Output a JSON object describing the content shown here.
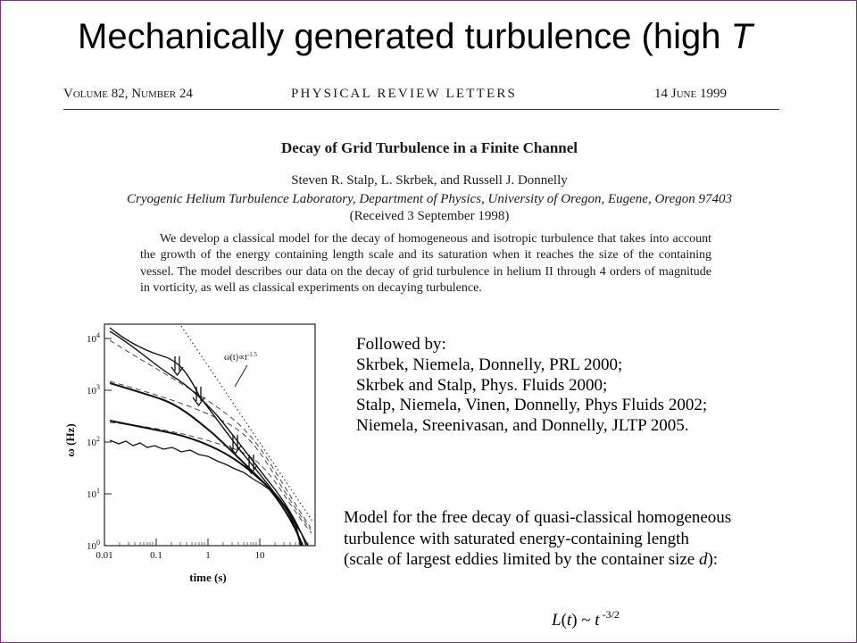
{
  "slide": {
    "title_pre": "Mechanically generated turbulence (high ",
    "title_var": "T",
    "border_color": "#7b2f7f"
  },
  "paper": {
    "header_left": "Volume 82, Number 24",
    "journal": "PHYSICAL REVIEW LETTERS",
    "date": "14 June 1999",
    "title": "Decay of Grid Turbulence in a Finite Channel",
    "authors": "Steven R. Stalp, L. Skrbek, and Russell J. Donnelly",
    "affiliation": "Cryogenic Helium Turbulence Laboratory, Department of Physics, University of Oregon, Eugene, Oregon 97403",
    "received": "(Received 3 September 1998)",
    "abstract": "We develop a classical model for the decay of homogeneous and isotropic turbulence that takes into account the growth of the energy containing length scale and its saturation when it reaches the size of the containing vessel. The model describes our data on the decay of grid turbulence in helium II through 4 orders of magnitude in vorticity, as well as classical experiments on decaying turbulence."
  },
  "plot": {
    "xlabel": "time (s)",
    "ylabel": "ω (Hz)",
    "x_ticks": [
      "0.01",
      "0.1",
      "1",
      "10"
    ],
    "y_ticks": [
      {
        "base": "10",
        "exp": "0"
      },
      {
        "base": "10",
        "exp": "1"
      },
      {
        "base": "10",
        "exp": "2"
      },
      {
        "base": "10",
        "exp": "3"
      },
      {
        "base": "10",
        "exp": "4"
      }
    ],
    "annotation_pre": "ω(t)∝t",
    "annotation_exp": "-1.5"
  },
  "followed_by": {
    "heading": "Followed by:",
    "refs": [
      "Skrbek, Niemela, Donnelly, PRL 2000;",
      "Skrbek and Stalp, Phys. Fluids 2000;",
      "Stalp, Niemela, Vinen, Donnelly, Phys Fluids 2002;",
      "Niemela, Sreenivasan, and Donnelly, JLTP 2005."
    ]
  },
  "model": {
    "line1": "Model for  the free decay of quasi-classical homogeneous",
    "line2": "turbulence with saturated energy-containing length",
    "line3_pre": "(scale of largest eddies limited by the container size ",
    "line3_var": "d",
    "line3_post": "):",
    "formula_L": "L",
    "formula_t": "t",
    "formula_rest": " ~ ",
    "formula_t2": "t",
    "formula_exp": " -3/2"
  }
}
